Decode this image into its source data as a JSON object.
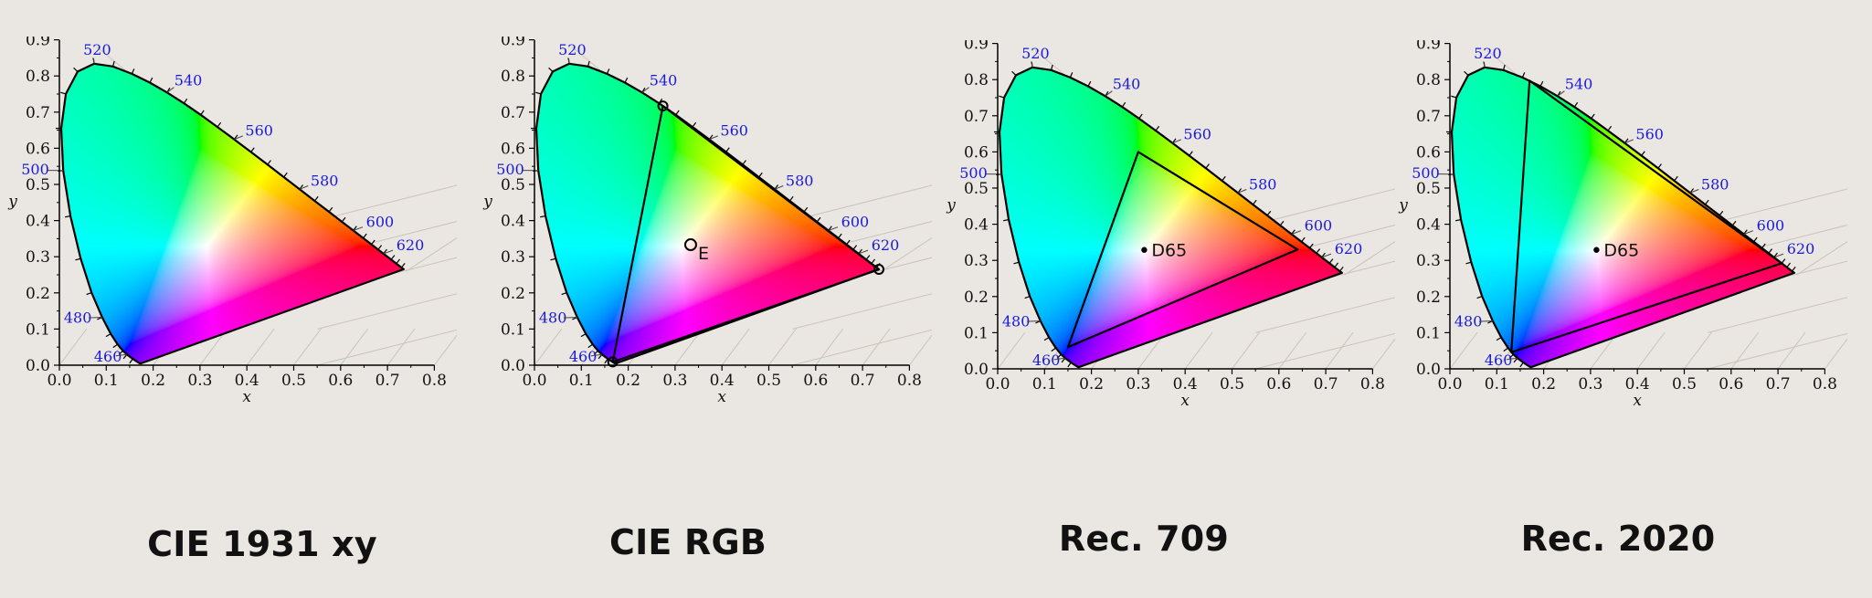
{
  "chart_data": [
    {
      "type": "scatter",
      "title": "CIE 1931 xy",
      "xlabel": "x",
      "ylabel": "y",
      "xlim": [
        0,
        0.8
      ],
      "ylim": [
        0,
        0.9
      ],
      "xticks": [
        "0.0",
        "0.1",
        "0.2",
        "0.3",
        "0.4",
        "0.5",
        "0.6",
        "0.7",
        "0.8"
      ],
      "yticks": [
        "0.0",
        "0.1",
        "0.2",
        "0.3",
        "0.4",
        "0.5",
        "0.6",
        "0.7",
        "0.8",
        "0.9"
      ],
      "wavelength_labels": [
        "460",
        "480",
        "500",
        "520",
        "540",
        "560",
        "580",
        "600",
        "620"
      ],
      "gamut": [],
      "points": []
    },
    {
      "type": "scatter",
      "title": "CIE RGB",
      "xlabel": "x",
      "ylabel": "y",
      "xlim": [
        0,
        0.8
      ],
      "ylim": [
        0,
        0.9
      ],
      "xticks": [
        "0.0",
        "0.1",
        "0.2",
        "0.3",
        "0.4",
        "0.5",
        "0.6",
        "0.7",
        "0.8"
      ],
      "yticks": [
        "0.0",
        "0.1",
        "0.2",
        "0.3",
        "0.4",
        "0.5",
        "0.6",
        "0.7",
        "0.8",
        "0.9"
      ],
      "wavelength_labels": [
        "460",
        "480",
        "500",
        "520",
        "540",
        "560",
        "580",
        "600",
        "620"
      ],
      "gamut": [
        [
          0.735,
          0.265
        ],
        [
          0.274,
          0.717
        ],
        [
          0.167,
          0.009
        ]
      ],
      "gamut_markers": "circle",
      "points": [
        {
          "label": "E",
          "x": 0.3333,
          "y": 0.3333,
          "marker": "circle"
        }
      ]
    },
    {
      "type": "scatter",
      "title": "Rec. 709",
      "xlabel": "x",
      "ylabel": "y",
      "xlim": [
        0,
        0.8
      ],
      "ylim": [
        0,
        0.9
      ],
      "xticks": [
        "0.0",
        "0.1",
        "0.2",
        "0.3",
        "0.4",
        "0.5",
        "0.6",
        "0.7",
        "0.8"
      ],
      "yticks": [
        "0.0",
        "0.1",
        "0.2",
        "0.3",
        "0.4",
        "0.5",
        "0.6",
        "0.7",
        "0.8",
        "0.9"
      ],
      "wavelength_labels": [
        "460",
        "480",
        "500",
        "520",
        "540",
        "560",
        "580",
        "600",
        "620"
      ],
      "gamut": [
        [
          0.64,
          0.33
        ],
        [
          0.3,
          0.6
        ],
        [
          0.15,
          0.06
        ]
      ],
      "gamut_markers": "none",
      "points": [
        {
          "label": "D65",
          "x": 0.3127,
          "y": 0.329,
          "marker": "dot"
        }
      ]
    },
    {
      "type": "scatter",
      "title": "Rec. 2020",
      "xlabel": "x",
      "ylabel": "y",
      "xlim": [
        0,
        0.8
      ],
      "ylim": [
        0,
        0.9
      ],
      "xticks": [
        "0.0",
        "0.1",
        "0.2",
        "0.3",
        "0.4",
        "0.5",
        "0.6",
        "0.7",
        "0.8"
      ],
      "yticks": [
        "0.0",
        "0.1",
        "0.2",
        "0.3",
        "0.4",
        "0.5",
        "0.6",
        "0.7",
        "0.8",
        "0.9"
      ],
      "wavelength_labels": [
        "460",
        "480",
        "500",
        "520",
        "540",
        "560",
        "580",
        "600",
        "620"
      ],
      "gamut": [
        [
          0.708,
          0.292
        ],
        [
          0.17,
          0.797
        ],
        [
          0.131,
          0.046
        ]
      ],
      "gamut_markers": "none",
      "points": [
        {
          "label": "D65",
          "x": 0.3127,
          "y": 0.329,
          "marker": "dot"
        }
      ]
    }
  ]
}
